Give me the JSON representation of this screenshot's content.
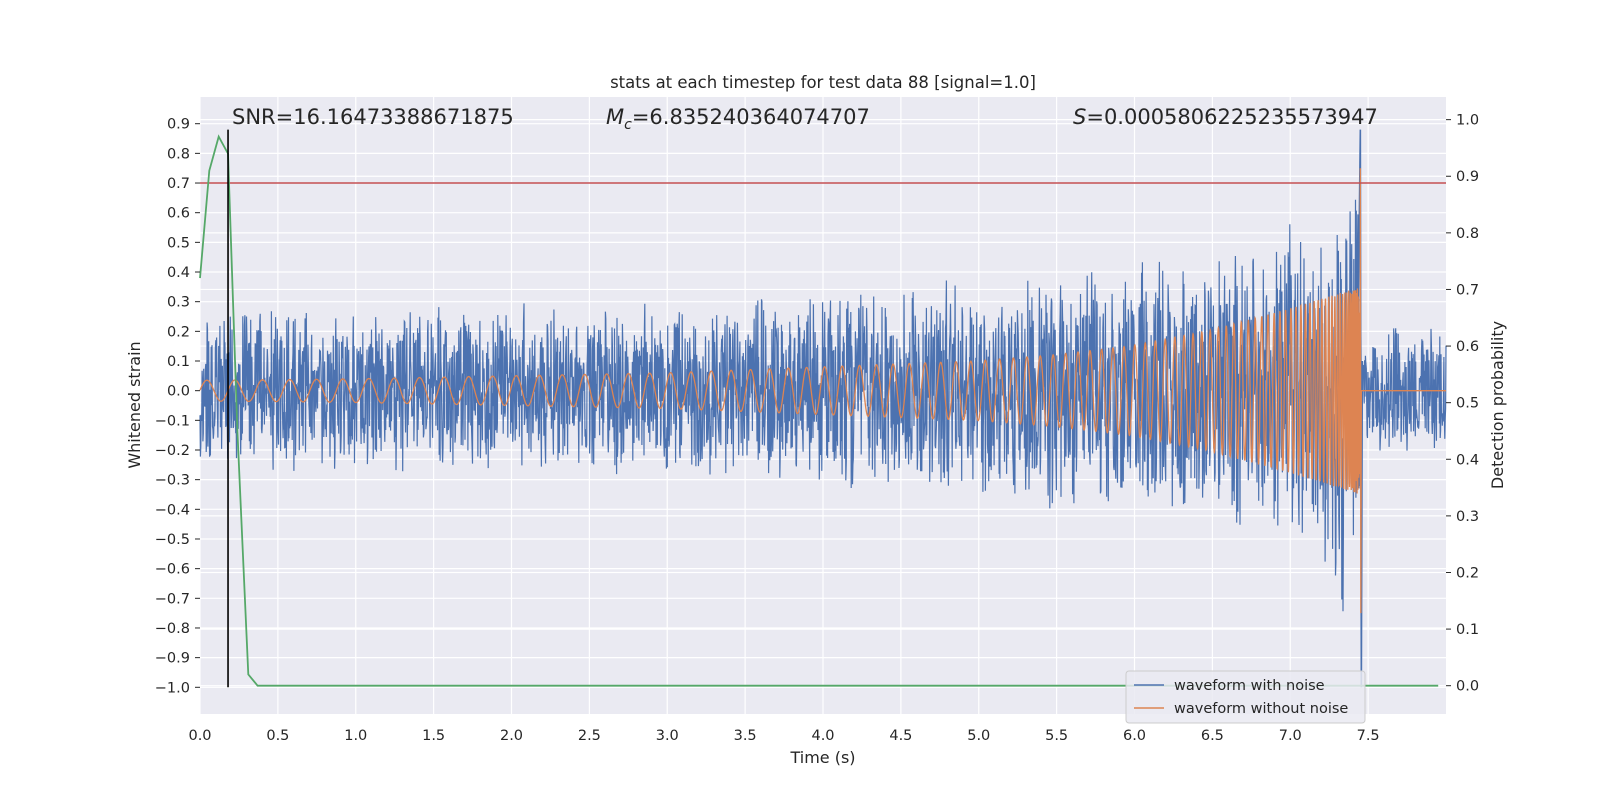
{
  "chart_data": {
    "type": "line",
    "title": "stats at each timestep for test data 88 [signal=1.0]",
    "xlabel": "Time (s)",
    "ylabel": "Whitened strain",
    "ylabel_right": "Detection probability",
    "xlim": [
      0.0,
      8.0
    ],
    "ylim": [
      -1.09,
      0.99
    ],
    "ylim_right": [
      -0.05,
      1.04
    ],
    "grid": true,
    "x_ticks": [
      "0.0",
      "0.5",
      "1.0",
      "1.5",
      "2.0",
      "2.5",
      "3.0",
      "3.5",
      "4.0",
      "4.5",
      "5.0",
      "5.5",
      "6.0",
      "6.5",
      "7.0",
      "7.5"
    ],
    "y_ticks": [
      "0.9",
      "0.8",
      "0.7",
      "0.6",
      "0.5",
      "0.4",
      "0.3",
      "0.2",
      "0.1",
      "0.0",
      "−0.1",
      "−0.2",
      "−0.3",
      "−0.4",
      "−0.5",
      "−0.6",
      "−0.7",
      "−0.8",
      "−0.9",
      "−1.0"
    ],
    "y_ticks_right": [
      "1.0",
      "0.9",
      "0.8",
      "0.7",
      "0.6",
      "0.5",
      "0.4",
      "0.3",
      "0.2",
      "0.1",
      "0.0"
    ],
    "annotations": {
      "snr": "SNR=16.16473388671875",
      "mc_symbol": "M",
      "mc_sub": "c",
      "mc_value": "=6.835240364074707",
      "s_symbol": "S",
      "s_value": "=0.0005806225235573947"
    },
    "threshold": {
      "value": 0.7,
      "axis": "left",
      "color": "#c44e52"
    },
    "detection_time": 0.18,
    "merger_time": 7.45,
    "series": [
      {
        "name": "waveform with noise",
        "axis": "left",
        "color": "#4c72b0",
        "noise_envelope": [
          0.27,
          0.28,
          0.29,
          0.3,
          0.3,
          0.3,
          0.31,
          0.32,
          0.34,
          0.37,
          0.38,
          0.41,
          0.45,
          0.49,
          0.55,
          0.85
        ],
        "peak_max": 0.88,
        "peak_min": -1.0,
        "post_merger_envelope": 0.23
      },
      {
        "name": "waveform without noise",
        "axis": "left",
        "color": "#dd8452",
        "amplitude": [
          0.035,
          0.037,
          0.04,
          0.045,
          0.05,
          0.055,
          0.06,
          0.07,
          0.08,
          0.09,
          0.1,
          0.12,
          0.15,
          0.2,
          0.27,
          0.35
        ],
        "peak": 0.75
      },
      {
        "name": "",
        "axis": "right",
        "color": "#55a868",
        "x": [
          0.0,
          0.06,
          0.12,
          0.18,
          0.24,
          0.31,
          0.37,
          0.44,
          1.0,
          2.0,
          3.0,
          4.0,
          5.0,
          6.0,
          7.0,
          7.5,
          7.95
        ],
        "y": [
          0.72,
          0.91,
          0.97,
          0.94,
          0.45,
          0.02,
          0.0,
          0.0,
          0.0,
          0.0,
          0.0,
          0.0,
          0.0,
          0.0,
          0.0,
          0.0,
          0.0
        ]
      }
    ],
    "legend": {
      "position": "lower-right",
      "entries": [
        "waveform with noise",
        "waveform without noise"
      ]
    }
  }
}
